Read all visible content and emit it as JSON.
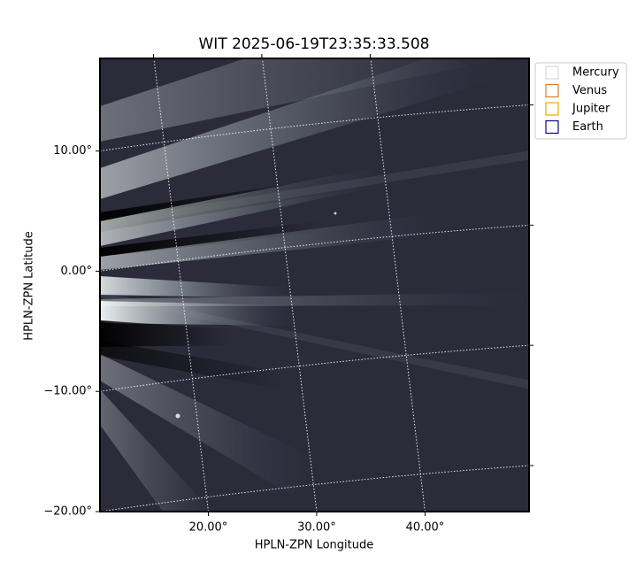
{
  "chart_data": {
    "type": "image",
    "title": "WIT 2025-06-19T23:35:33.508",
    "x_label": "HPLN-ZPN Longitude",
    "y_label": "HPLN-ZPN Latitude",
    "xlim": [
      10.0,
      49.6
    ],
    "ylim": [
      -20.0,
      17.7
    ],
    "xticks": [
      {
        "value": 20,
        "label": "20.00°"
      },
      {
        "value": 30,
        "label": "30.00°"
      },
      {
        "value": 40,
        "label": "40.00°"
      }
    ],
    "yticks": [
      {
        "value": 10,
        "label": "10.00°"
      },
      {
        "value": 0,
        "label": "0.00°"
      },
      {
        "value": -10,
        "label": "−10.00°"
      },
      {
        "value": -20,
        "label": "−20.00°"
      }
    ],
    "grid": true,
    "legend": "upper right outside",
    "series": [
      {
        "name": "Mercury",
        "color": "#d9d9d9"
      },
      {
        "name": "Venus",
        "color": "#e07b2a"
      },
      {
        "name": "Jupiter",
        "color": "#e8a800"
      },
      {
        "name": "Earth",
        "color": "#0a0a78"
      }
    ]
  }
}
